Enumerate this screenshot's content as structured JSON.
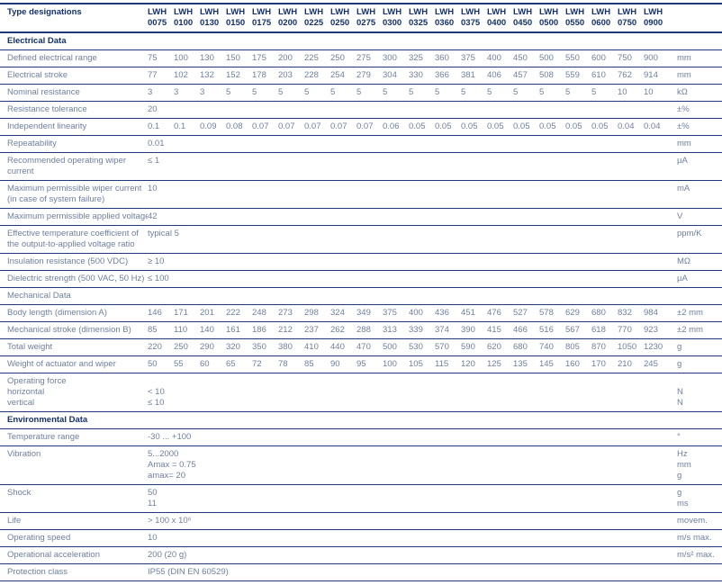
{
  "colors": {
    "rule": "#1e3a7a",
    "heading_text": "#14306a",
    "body_text": "#6e7fa0",
    "background": "#ffffff"
  },
  "table": {
    "header": {
      "label": "Type designations",
      "series_prefix": "LWH",
      "models": [
        "0075",
        "0100",
        "0130",
        "0150",
        "0175",
        "0200",
        "0225",
        "0250",
        "0275",
        "0300",
        "0325",
        "0360",
        "0375",
        "0400",
        "0450",
        "0500",
        "0550",
        "0600",
        "0750",
        "0900"
      ],
      "unit_label": ""
    },
    "sections": [
      {
        "title": "Electrical Data",
        "bold": true,
        "rows": [
          {
            "label": [
              "Defined electrical range"
            ],
            "values": [
              "75",
              "100",
              "130",
              "150",
              "175",
              "200",
              "225",
              "250",
              "275",
              "300",
              "325",
              "360",
              "375",
              "400",
              "450",
              "500",
              "550",
              "600",
              "750",
              "900"
            ],
            "units": [
              "mm"
            ]
          },
          {
            "label": [
              "Electrical stroke"
            ],
            "values": [
              "77",
              "102",
              "132",
              "152",
              "178",
              "203",
              "228",
              "254",
              "279",
              "304",
              "330",
              "366",
              "381",
              "406",
              "457",
              "508",
              "559",
              "610",
              "762",
              "914"
            ],
            "units": [
              "mm"
            ]
          },
          {
            "label": [
              "Nominal resistance"
            ],
            "values": [
              "3",
              "3",
              "3",
              "5",
              "5",
              "5",
              "5",
              "5",
              "5",
              "5",
              "5",
              "5",
              "5",
              "5",
              "5",
              "5",
              "5",
              "5",
              "10",
              "10"
            ],
            "units": [
              "kΩ"
            ]
          },
          {
            "label": [
              "Resistance tolerance"
            ],
            "values": [
              "20"
            ],
            "units": [
              "±%"
            ]
          },
          {
            "label": [
              "Independent linearity"
            ],
            "values": [
              "0.1",
              "0.1",
              "0.09",
              "0.08",
              "0.07",
              "0.07",
              "0.07",
              "0.07",
              "0.07",
              "0.06",
              "0.05",
              "0.05",
              "0.05",
              "0.05",
              "0.05",
              "0.05",
              "0.05",
              "0.05",
              "0.04",
              "0.04"
            ],
            "units": [
              "±%"
            ]
          },
          {
            "label": [
              "Repeatability"
            ],
            "values": [
              "0.01"
            ],
            "units": [
              "mm"
            ]
          },
          {
            "label": [
              "Recommended operating wiper",
              "current"
            ],
            "values": [
              "≤ 1"
            ],
            "units": [
              "µA"
            ]
          },
          {
            "label": [
              "Maximum permissible wiper current",
              "(in case of system failure)"
            ],
            "values": [
              "10"
            ],
            "units": [
              "mA"
            ]
          },
          {
            "label": [
              "Maximum permissible applied voltage"
            ],
            "values": [
              "42"
            ],
            "units": [
              "V"
            ]
          },
          {
            "label": [
              "Effective temperature coefficient of",
              "the output-to-applied voltage ratio"
            ],
            "values": [
              "typical 5"
            ],
            "units": [
              "ppm/K"
            ]
          },
          {
            "label": [
              "Insulation resistance (500 VDC)"
            ],
            "values": [
              "≥ 10"
            ],
            "units": [
              "MΩ"
            ]
          },
          {
            "label": [
              "Dielectric strength (500 VAC, 50 Hz)"
            ],
            "values": [
              "≤ 100"
            ],
            "units": [
              "µA"
            ]
          }
        ]
      },
      {
        "title": "Mechanical Data",
        "bold": false,
        "rows": [
          {
            "label": [
              "Body length (dimension A)"
            ],
            "values": [
              "146",
              "171",
              "201",
              "222",
              "248",
              "273",
              "298",
              "324",
              "349",
              "375",
              "400",
              "436",
              "451",
              "476",
              "527",
              "578",
              "629",
              "680",
              "832",
              "984"
            ],
            "units": [
              "±2 mm"
            ]
          },
          {
            "label": [
              "Mechanical stroke (dimension B)"
            ],
            "values": [
              "85",
              "110",
              "140",
              "161",
              "186",
              "212",
              "237",
              "262",
              "288",
              "313",
              "339",
              "374",
              "390",
              "415",
              "466",
              "516",
              "567",
              "618",
              "770",
              "923"
            ],
            "units": [
              "±2 mm"
            ]
          },
          {
            "label": [
              "Total weight"
            ],
            "values": [
              "220",
              "250",
              "290",
              "320",
              "350",
              "380",
              "410",
              "440",
              "470",
              "500",
              "530",
              "570",
              "590",
              "620",
              "680",
              "740",
              "805",
              "870",
              "1050",
              "1230"
            ],
            "units": [
              "g"
            ]
          },
          {
            "label": [
              "Weight of actuator and wiper"
            ],
            "values": [
              "50",
              "55",
              "60",
              "65",
              "72",
              "78",
              "85",
              "90",
              "95",
              "100",
              "105",
              "115",
              "120",
              "125",
              "135",
              "145",
              "160",
              "170",
              "210",
              "245"
            ],
            "units": [
              "g"
            ]
          },
          {
            "label": [
              "Operating force",
              "horizontal",
              "vertical"
            ],
            "values": [
              "",
              "< 10",
              "≤ 10"
            ],
            "units": [
              "",
              "N",
              "N"
            ]
          }
        ]
      },
      {
        "title": "Environmental Data",
        "bold": true,
        "rows": [
          {
            "label": [
              "Temperature range"
            ],
            "values": [
              "-30 ... +100"
            ],
            "units": [
              "°"
            ]
          },
          {
            "label": [
              "Vibration"
            ],
            "values": [
              "5...2000",
              "Amax = 0.75",
              "amax= 20"
            ],
            "units": [
              "Hz",
              "mm",
              "g"
            ]
          },
          {
            "label": [
              "Shock"
            ],
            "values": [
              "50",
              "11"
            ],
            "units": [
              "g",
              "ms"
            ]
          },
          {
            "label": [
              "Life"
            ],
            "values": [
              "> 100 x 10⁶"
            ],
            "units": [
              "movem."
            ]
          },
          {
            "label": [
              "Operating speed"
            ],
            "values": [
              "10"
            ],
            "units": [
              "m/s max."
            ]
          },
          {
            "label": [
              "Operational acceleration"
            ],
            "values": [
              "200 (20 g)"
            ],
            "units": [
              "m/s² max."
            ]
          },
          {
            "label": [
              "Protection class"
            ],
            "values": [
              "IP55 (DIN EN 60529)"
            ],
            "units": [
              ""
            ]
          }
        ]
      }
    ]
  }
}
